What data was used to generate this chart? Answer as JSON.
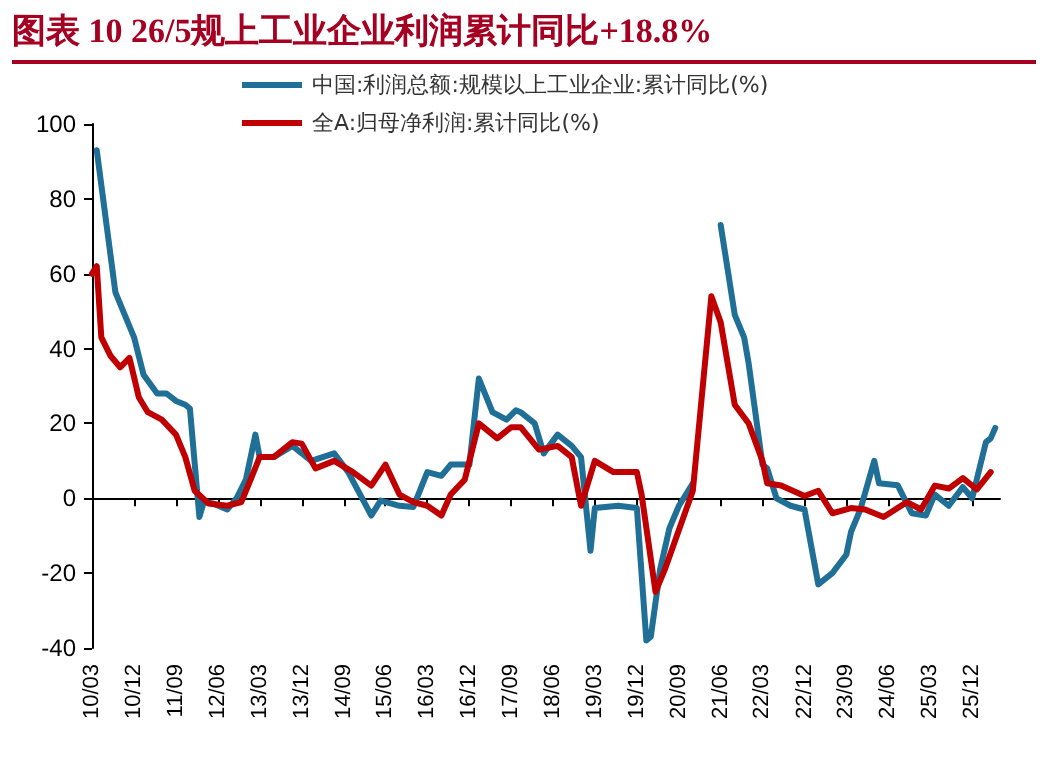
{
  "chart_data": {
    "type": "line",
    "title": "图表 10    26/5规上工业企业利润累计同比+18.8%",
    "series": [
      {
        "name": "中国:利润总额:规模以上工业企业:累计同比(%)",
        "color": "#1f6f97",
        "x": [
          "2010-04",
          "2010-08",
          "2010-10",
          "2010-12",
          "2011-02",
          "2011-05",
          "2011-07",
          "2011-09",
          "2011-11",
          "2011-12",
          "2012-02",
          "2012-03",
          "2012-05",
          "2012-08",
          "2012-10",
          "2012-12",
          "2013-02",
          "2013-03",
          "2013-06",
          "2013-10",
          "2014-02",
          "2014-07",
          "2014-10",
          "2015-03",
          "2015-05",
          "2015-09",
          "2015-12",
          "2016-03",
          "2016-06",
          "2016-08",
          "2016-12",
          "2017-02",
          "2017-05",
          "2017-08",
          "2017-10",
          "2017-11",
          "2018-02",
          "2018-04",
          "2018-07",
          "2018-10",
          "2018-12",
          "2019-02",
          "2019-03",
          "2019-08",
          "2019-12",
          "2020-02",
          "2020-03",
          "2020-05",
          "2020-07",
          "2020-09",
          "2020-12",
          "2021-02",
          "2021-06",
          "2021-09",
          "2021-11",
          "2021-12",
          "2022-03",
          "2022-04",
          "2022-06",
          "2022-09",
          "2022-12",
          "2023-03",
          "2023-06",
          "2023-09",
          "2023-10",
          "2023-12",
          "2024-03",
          "2024-04",
          "2024-08",
          "2024-11",
          "2025-02",
          "2025-04",
          "2025-07",
          "2025-10",
          "2025-12",
          "2026-03",
          "2026-04",
          "2026-05"
        ],
        "values": [
          93,
          55,
          49,
          43,
          33,
          28,
          28,
          26,
          25,
          24,
          -5,
          -1,
          -1.4,
          -3,
          0,
          5,
          17,
          11,
          11,
          14,
          10,
          12,
          7,
          -4.6,
          -0.6,
          -2,
          -2.3,
          7,
          6,
          9,
          9,
          32,
          23,
          21,
          23.5,
          23,
          20,
          12,
          17,
          14,
          11,
          -14,
          -2.6,
          -2,
          -2.6,
          -38,
          -37,
          -19,
          -8,
          -2,
          4,
          null,
          73,
          49,
          43,
          36,
          9,
          8,
          0,
          -2,
          -3,
          -23,
          -20,
          -15,
          -9,
          -3,
          10,
          4,
          3.5,
          -4,
          -4.6,
          1,
          -2,
          3,
          0,
          15,
          16,
          18.8
        ]
      },
      {
        "name": "全A:归母净利润:累计同比(%)",
        "color": "#c00000",
        "x": [
          "2010-03",
          "2010-04",
          "2010-05",
          "2010-07",
          "2010-09",
          "2010-11",
          "2011-01",
          "2011-03",
          "2011-06",
          "2011-09",
          "2011-11",
          "2012-01",
          "2012-04",
          "2012-08",
          "2012-11",
          "2013-01",
          "2013-03",
          "2013-06",
          "2013-10",
          "2013-12",
          "2014-03",
          "2014-07",
          "2014-11",
          "2015-03",
          "2015-06",
          "2015-09",
          "2015-12",
          "2016-03",
          "2016-06",
          "2016-08",
          "2016-11",
          "2017-02",
          "2017-06",
          "2017-09",
          "2017-11",
          "2018-03",
          "2018-07",
          "2018-10",
          "2018-12",
          "2019-03",
          "2019-07",
          "2019-12",
          "2020-01",
          "2020-04",
          "2020-06",
          "2020-10",
          "2020-12",
          "2021-04",
          "2021-06",
          "2021-09",
          "2021-12",
          "2022-03",
          "2022-04",
          "2022-07",
          "2022-12",
          "2023-03",
          "2023-06",
          "2023-10",
          "2024-01",
          "2024-05",
          "2024-10",
          "2025-01",
          "2025-04",
          "2025-07",
          "2025-10",
          "2026-01",
          "2026-04"
        ],
        "values": [
          60,
          62,
          43,
          38,
          35,
          37.5,
          27,
          23,
          21,
          17,
          11,
          2,
          -1.4,
          -2,
          -1,
          5,
          11,
          11,
          15,
          14.6,
          8,
          10,
          7,
          3.4,
          9,
          1,
          -1,
          -2,
          -4.6,
          1,
          5,
          20,
          16,
          19,
          19,
          13,
          14,
          11,
          -2,
          10,
          7,
          7,
          1,
          -25,
          -19,
          -5,
          2,
          54,
          47,
          25,
          20,
          10,
          4,
          3.4,
          0.6,
          2,
          -4,
          -2.6,
          -3,
          -5,
          -1,
          -3,
          3.4,
          2.6,
          5.4,
          2.4,
          7
        ]
      }
    ],
    "xlim": [
      "2010-03",
      "2026-06"
    ],
    "xticks": [
      {
        "value": "2010-03",
        "label": "10/03"
      },
      {
        "value": "2010-12",
        "label": "10/12"
      },
      {
        "value": "2011-09",
        "label": "11/09"
      },
      {
        "value": "2012-06",
        "label": "12/06"
      },
      {
        "value": "2013-03",
        "label": "13/03"
      },
      {
        "value": "2013-12",
        "label": "13/12"
      },
      {
        "value": "2014-09",
        "label": "14/09"
      },
      {
        "value": "2015-06",
        "label": "15/06"
      },
      {
        "value": "2016-03",
        "label": "16/03"
      },
      {
        "value": "2016-12",
        "label": "16/12"
      },
      {
        "value": "2017-09",
        "label": "17/09"
      },
      {
        "value": "2018-06",
        "label": "18/06"
      },
      {
        "value": "2019-03",
        "label": "19/03"
      },
      {
        "value": "2019-12",
        "label": "19/12"
      },
      {
        "value": "2020-09",
        "label": "20/09"
      },
      {
        "value": "2021-06",
        "label": "21/06"
      },
      {
        "value": "2022-03",
        "label": "22/03"
      },
      {
        "value": "2022-12",
        "label": "22/12"
      },
      {
        "value": "2023-09",
        "label": "23/09"
      },
      {
        "value": "2024-06",
        "label": "24/06"
      },
      {
        "value": "2025-03",
        "label": "25/03"
      },
      {
        "value": "2025-12",
        "label": "25/12"
      }
    ],
    "ylim": [
      -40,
      100
    ],
    "yticks": [
      -40,
      -20,
      0,
      20,
      40,
      60,
      80,
      100
    ],
    "legend": "top",
    "marker": "none",
    "line_style": "solid"
  }
}
